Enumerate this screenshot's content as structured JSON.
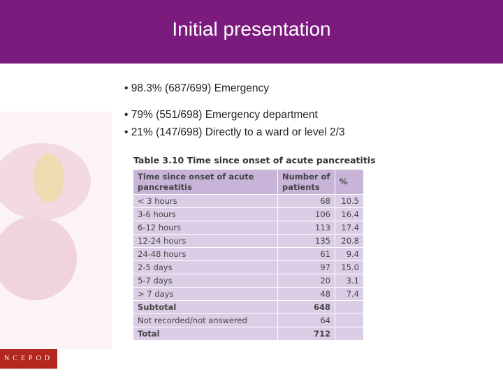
{
  "header": {
    "title": "Initial presentation"
  },
  "bullets": [
    "98.3% (687/699) Emergency",
    "79%  (551/698) Emergency department",
    "21% (147/698) Directly to a ward or level 2/3"
  ],
  "table": {
    "caption": "Table 3.10 Time since onset of acute pancreatitis",
    "columns": [
      "Time since onset of acute pancreatitis",
      "Number of patients",
      "%"
    ],
    "rows": [
      [
        "< 3 hours",
        "68",
        "10.5"
      ],
      [
        "3-6 hours",
        "106",
        "16.4"
      ],
      [
        "6-12 hours",
        "113",
        "17.4"
      ],
      [
        "12-24 hours",
        "135",
        "20.8"
      ],
      [
        "24-48 hours",
        "61",
        "9.4"
      ],
      [
        "2-5 days",
        "97",
        "15.0"
      ],
      [
        "5-7 days",
        "20",
        "3.1"
      ],
      [
        "> 7 days",
        "48",
        "7.4"
      ],
      [
        "Subtotal",
        "648"
      ],
      [
        "Not recorded/not answered",
        "64"
      ],
      [
        "Total",
        "712"
      ]
    ]
  },
  "logo": "NCEPOD"
}
